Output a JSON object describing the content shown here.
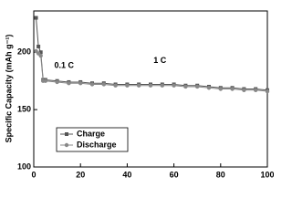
{
  "chart_data": {
    "type": "line",
    "ylabel": "Specific Capacity (mAh g⁻¹)",
    "annotations": [
      {
        "text": "0.1 C",
        "x": 13,
        "y": 188
      },
      {
        "text": "1 C",
        "x": 54,
        "y": 186
      }
    ],
    "x": [
      1,
      2,
      3,
      4,
      5,
      10,
      15,
      20,
      25,
      30,
      35,
      40,
      45,
      50,
      55,
      60,
      65,
      70,
      75,
      80,
      85,
      90,
      95,
      100
    ],
    "series": [
      {
        "name": "Charge",
        "color": "#555555",
        "marker": "square",
        "values": [
          230,
          205,
          200,
          176,
          176,
          175,
          174,
          174,
          173,
          173,
          172,
          172,
          172,
          172,
          172,
          172,
          171,
          171,
          170,
          169,
          169,
          168,
          168,
          167
        ]
      },
      {
        "name": "Discharge",
        "color": "#888888",
        "marker": "circle",
        "values": [
          201,
          199,
          197,
          175,
          175,
          174,
          173,
          173,
          172,
          172,
          171,
          171,
          171,
          171,
          171,
          171,
          170,
          170,
          169,
          168,
          168,
          167,
          167,
          166
        ]
      }
    ],
    "xlim": [
      0,
      100
    ],
    "xticks": [
      0,
      20,
      40,
      60,
      80,
      100
    ],
    "ylim": [
      100,
      236
    ],
    "yticks": [
      100,
      150,
      200
    ],
    "legend": "lower-left"
  }
}
